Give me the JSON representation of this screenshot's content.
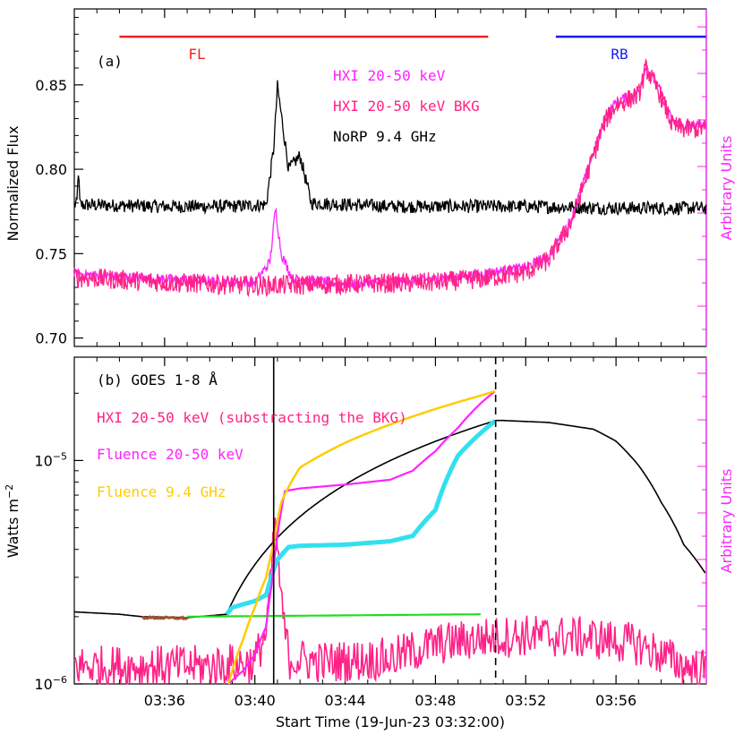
{
  "chart_data": [
    {
      "type": "line",
      "panel_label": "(a)",
      "ylabel": "Normalized Flux",
      "ylabel_right": "Arbitrary Units",
      "ylim": [
        0.695,
        0.895
      ],
      "yticks": [
        0.7,
        0.75,
        0.8,
        0.85
      ],
      "ytick_labels": [
        "0.70",
        "0.75",
        "0.80",
        "0.85"
      ],
      "xlim_minutes": [
        0,
        28
      ],
      "interval_bars": [
        {
          "label": "FL",
          "start": "03:34:00",
          "end": "03:50:20",
          "color": "#ee2020"
        },
        {
          "label": "RB",
          "start": "03:53:20",
          "end": "03:59:59",
          "color": "#1a1aee"
        }
      ],
      "legend": [
        {
          "label": "HXI 20-50 keV",
          "color": "#ff22ff"
        },
        {
          "label": "HXI 20-50 keV BKG",
          "color": "#ff2288"
        },
        {
          "label": "NoRP 9.4 GHz",
          "color": "#000000"
        }
      ],
      "series": [
        {
          "name": "NoRP 9.4 GHz",
          "color": "#000000",
          "x": [
            "03:32:00",
            "03:36:00",
            "03:39:00",
            "03:40:30",
            "03:40:50",
            "03:41:00",
            "03:41:30",
            "03:42:00",
            "03:42:30",
            "03:46:00",
            "03:52:00",
            "03:56:00",
            "03:59:59"
          ],
          "values": [
            0.779,
            0.778,
            0.778,
            0.779,
            0.812,
            0.849,
            0.8,
            0.808,
            0.78,
            0.778,
            0.778,
            0.777,
            0.777
          ],
          "noise": 0.004
        },
        {
          "name": "HXI 20-50 keV",
          "color": "#ff22ff",
          "x": [
            "03:32:00",
            "03:36:00",
            "03:40:00",
            "03:40:40",
            "03:40:55",
            "03:41:10",
            "03:41:40",
            "03:44:00",
            "03:48:00",
            "03:50:00",
            "03:51:00",
            "03:52:00",
            "03:53:00",
            "03:54:00",
            "03:55:00",
            "03:55:30",
            "03:56:00",
            "03:57:00",
            "03:57:20",
            "03:58:00",
            "03:58:30",
            "03:59:00",
            "03:59:59"
          ],
          "values": [
            0.738,
            0.735,
            0.733,
            0.745,
            0.777,
            0.75,
            0.735,
            0.732,
            0.735,
            0.738,
            0.74,
            0.742,
            0.748,
            0.77,
            0.81,
            0.83,
            0.84,
            0.846,
            0.862,
            0.845,
            0.828,
            0.826,
            0.826
          ],
          "noise": 0.003
        },
        {
          "name": "HXI 20-50 keV BKG",
          "color": "#ff2288",
          "x": [
            "03:32:00",
            "03:36:00",
            "03:40:00",
            "03:44:00",
            "03:48:00",
            "03:50:00",
            "03:51:00",
            "03:52:00",
            "03:53:00",
            "03:54:00",
            "03:55:00",
            "03:55:30",
            "03:56:00",
            "03:57:00",
            "03:57:20",
            "03:58:00",
            "03:58:30",
            "03:59:00",
            "03:59:59"
          ],
          "values": [
            0.736,
            0.733,
            0.731,
            0.732,
            0.733,
            0.735,
            0.737,
            0.739,
            0.746,
            0.768,
            0.808,
            0.828,
            0.838,
            0.844,
            0.86,
            0.843,
            0.826,
            0.824,
            0.824
          ],
          "noise": 0.006
        }
      ]
    },
    {
      "type": "line",
      "panel_label": "(b)",
      "ylabel": "Watts m",
      "ylabel_sup": "−2",
      "ylabel_right": "Arbitrary Units",
      "yscale": "log",
      "ylim": [
        1e-06,
        2.9e-05
      ],
      "yticks": [
        1e-06,
        1e-05
      ],
      "ytick_labels": [
        {
          "base": "10",
          "exp": "−6"
        },
        {
          "base": "10",
          "exp": "−5"
        }
      ],
      "xlabel": "Start Time (19-Jun-23 03:32:00)",
      "xlim_minutes": [
        0,
        28
      ],
      "xticks": [
        "03:36",
        "03:40",
        "03:44",
        "03:48",
        "03:52",
        "03:56"
      ],
      "vertical_lines": [
        {
          "time": "03:40:50",
          "style": "solid",
          "color": "#000000"
        },
        {
          "time": "03:50:40",
          "style": "dashed",
          "color": "#000000"
        }
      ],
      "legend": [
        {
          "label": "(b) GOES 1-8 Å",
          "color": "#000000"
        },
        {
          "label": "HXI 20-50 keV (substracting the BKG)",
          "color": "#ff2288"
        },
        {
          "label": "Fluence 20-50 keV",
          "color": "#ff22ff"
        },
        {
          "label": "Fluence 9.4 GHz",
          "color": "#ffcc00"
        }
      ],
      "series": [
        {
          "name": "GOES 1-8 Å",
          "color": "#000000",
          "x": [
            "03:32:00",
            "03:34:00",
            "03:35:00",
            "03:37:00",
            "03:38:45",
            "03:50:40",
            "03:51:00",
            "03:53:00",
            "03:55:00",
            "03:56:00",
            "03:57:00",
            "03:58:00",
            "03:59:00",
            "03:59:59"
          ],
          "values": [
            2.1e-06,
            2.05e-06,
            2e-06,
            1.98e-06,
            2.05e-06,
            1.51e-05,
            1.51e-05,
            1.48e-05,
            1.38e-05,
            1.22e-05,
            9.5e-06,
            6.5e-06,
            4.2e-06,
            3.1e-06
          ]
        },
        {
          "name": "GOES background (brown)",
          "color": "#a0522d",
          "x": [
            "03:35:00",
            "03:37:00"
          ],
          "values": [
            1.98e-06,
            1.97e-06
          ],
          "noise": 2e-08
        },
        {
          "name": "GOES cyan segment",
          "color": "#33e0f0",
          "x": [
            "03:38:45",
            "03:39:00",
            "03:40:00",
            "03:40:30",
            "03:41:00",
            "03:41:30",
            "03:42:00",
            "03:44:00",
            "03:46:00",
            "03:47:00",
            "03:48:00",
            "03:49:00",
            "03:50:40"
          ],
          "values": [
            2.05e-06,
            2.2e-06,
            2.35e-06,
            2.5e-06,
            3.6e-06,
            4.1e-06,
            4.15e-06,
            4.2e-06,
            4.35e-06,
            4.6e-06,
            6e-06,
            1.05e-05,
            1.51e-05
          ]
        },
        {
          "name": "Green background",
          "color": "#22dd22",
          "x": [
            "03:37:00",
            "03:50:00"
          ],
          "values": [
            2e-06,
            2.05e-06
          ]
        },
        {
          "name": "HXI 20-50 keV (substracting the BKG)",
          "color": "#ff2288",
          "x": [
            "03:32:00",
            "03:38:00",
            "03:40:00",
            "03:40:30",
            "03:40:40",
            "03:40:55",
            "03:41:10",
            "03:41:30",
            "03:43:00",
            "03:46:00",
            "03:48:00",
            "03:50:00",
            "03:52:00",
            "03:55:00",
            "03:57:00",
            "03:58:00",
            "03:59:00",
            "03:59:59"
          ],
          "values": [
            1.2e-06,
            1.2e-06,
            1.25e-06,
            1.7e-06,
            2.6e-06,
            5e-06,
            2.2e-06,
            1.3e-06,
            1.25e-06,
            1.3e-06,
            1.5e-06,
            1.6e-06,
            1.65e-06,
            1.6e-06,
            1.5e-06,
            1.35e-06,
            1.2e-06,
            1.15e-06
          ],
          "noise": 0.22
        },
        {
          "name": "Fluence 20-50 keV",
          "color": "#ff22ff",
          "x": [
            "03:38:50",
            "03:39:30",
            "03:40:00",
            "03:40:30",
            "03:40:45",
            "03:41:00",
            "03:41:20",
            "03:42:00",
            "03:44:00",
            "03:46:00",
            "03:47:00",
            "03:48:00",
            "03:49:00",
            "03:50:00",
            "03:50:40"
          ],
          "values": [
            1e-06,
            1.15e-06,
            1.35e-06,
            1.8e-06,
            2.8e-06,
            4.6e-06,
            7.3e-06,
            7.5e-06,
            7.8e-06,
            8.2e-06,
            9e-06,
            1.1e-05,
            1.4e-05,
            1.8e-05,
            2.05e-05
          ]
        },
        {
          "name": "Fluence 9.4 GHz",
          "color": "#ffcc00",
          "x": [
            "03:38:50",
            "03:39:30",
            "03:40:00",
            "03:40:30",
            "03:40:50",
            "03:41:10",
            "03:42:00",
            "03:44:00",
            "03:46:00",
            "03:48:00",
            "03:50:00",
            "03:50:40"
          ],
          "values": [
            1e-06,
            1.6e-06,
            2.2e-06,
            3e-06,
            4.2e-06,
            6.5e-06,
            9.3e-06,
            1.2e-05,
            1.45e-05,
            1.7e-05,
            1.95e-05,
            2.05e-05
          ]
        }
      ]
    }
  ]
}
